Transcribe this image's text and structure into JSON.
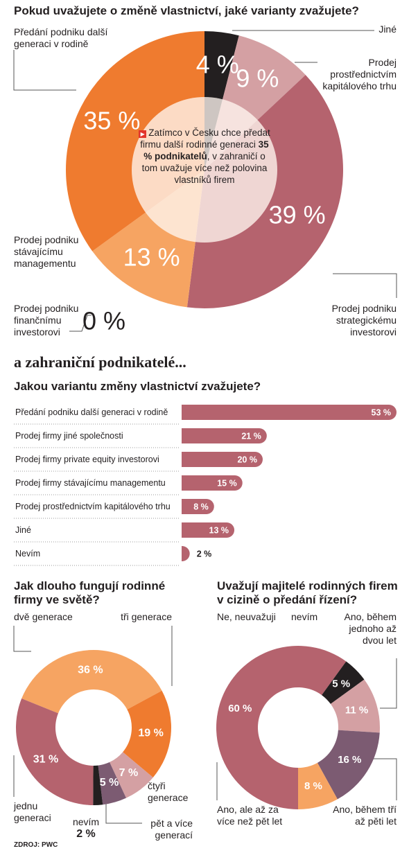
{
  "chart_data": [
    {
      "type": "donut",
      "title": "Pokud uvažujete o změně vlastnictví, jaké varianty zvažujete?",
      "annotation": [
        "Zatímco v Česku chce předat firmu další rodinné generaci",
        "35 % podnikatelů",
        ", v zahraničí o tom uvažuje více než polovina vlastníků firem"
      ],
      "categories": [
        "Jiné",
        "Prodej prostřednictvím kapitálového trhu",
        "Prodej podniku strategickému investorovi",
        "Prodej podniku finančnímu investorovi",
        "Prodej podniku stávajícímu managementu",
        "Předání podniku další generaci v rodině"
      ],
      "values": [
        4,
        9,
        39,
        0,
        13,
        35
      ],
      "value_labels": [
        "4 %",
        "9 %",
        "39 %",
        "0 %",
        "13 %",
        "35 %"
      ],
      "colors": [
        "#231f20",
        "#d4a0a3",
        "#b5636e",
        "#7c5b72",
        "#f6a462",
        "#ef7b2f"
      ]
    },
    {
      "type": "bar",
      "heading": "a zahraniční podnikatelé...",
      "title": "Jakou variantu změny vlastnictví zvažujete?",
      "categories": [
        "Předání podniku další generaci v rodině",
        "Prodej firmy jiné společnosti",
        "Prodej firmy private equity investorovi",
        "Prodej firmy stávajícímu managementu",
        "Prodej prostřednictvím kapitálového trhu",
        "Jiné",
        "Nevím"
      ],
      "values": [
        53,
        21,
        20,
        15,
        8,
        13,
        2
      ],
      "value_labels": [
        "53 %",
        "21 %",
        "20 %",
        "15 %",
        "8 %",
        "13 %",
        "2 %"
      ],
      "color": "#b5636e"
    },
    {
      "type": "donut",
      "title": "Jak dlouho fungují rodinné firmy ve světě?",
      "categories": [
        "dvě generace",
        "tři generace",
        "čtyři generace",
        "pět a více generací",
        "nevím",
        "jednu generaci"
      ],
      "values": [
        36,
        19,
        7,
        5,
        2,
        31
      ],
      "value_labels": [
        "36 %",
        "19 %",
        "7 %",
        "5 %",
        "2 %",
        "31 %"
      ],
      "colors": [
        "#f6a462",
        "#ef7b2f",
        "#d4a0a3",
        "#7c5b72",
        "#231f20",
        "#b5636e"
      ]
    },
    {
      "type": "donut",
      "title": "Uvažují majitelé rodinných firem v cizině o předání řízení?",
      "categories": [
        "Ne, neuvažuji",
        "nevím",
        "Ano, během jednoho až dvou let",
        "Ano, během tří až pěti let",
        "Ano, ale až za více než pět let"
      ],
      "values": [
        60,
        5,
        11,
        16,
        8
      ],
      "value_labels": [
        "60 %",
        "5 %",
        "11 %",
        "16 %",
        "8 %"
      ],
      "colors": [
        "#b5636e",
        "#231f20",
        "#d4a0a3",
        "#7c5b72",
        "#f6a462"
      ]
    }
  ],
  "source": "ZDROJ: PWC"
}
